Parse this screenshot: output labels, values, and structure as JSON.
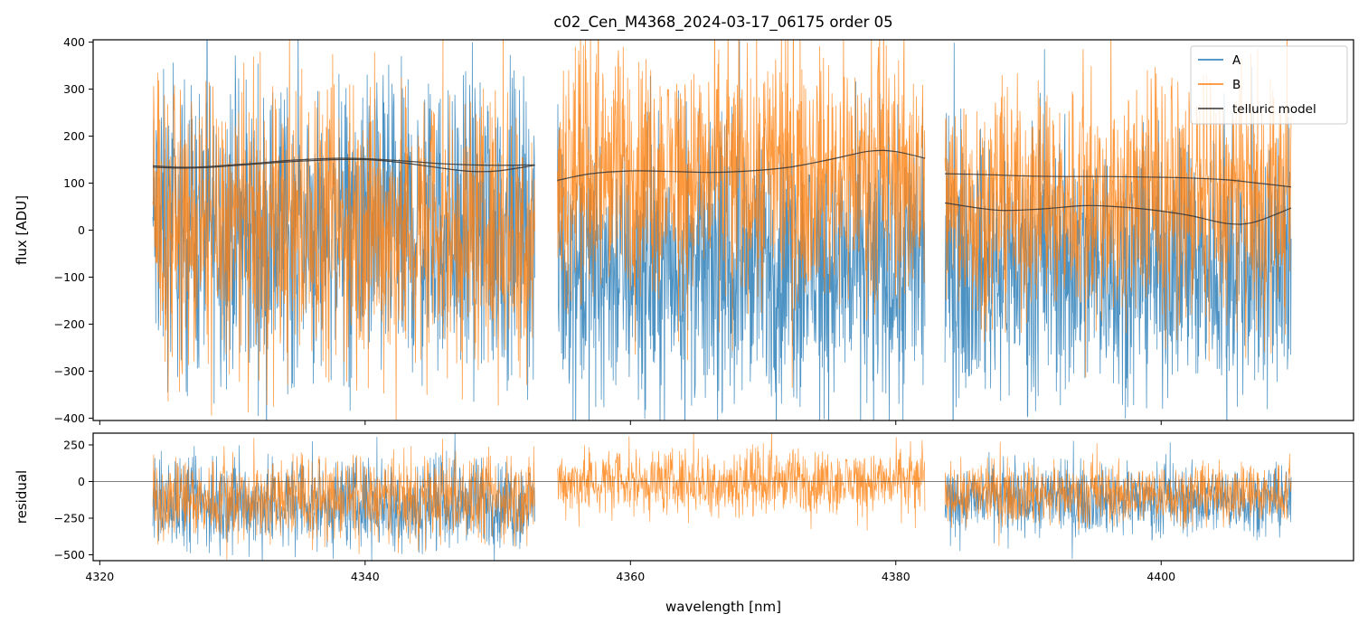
{
  "figure": {
    "title": "c02_Cen_M4368_2024-03-17_06175  order 05",
    "xlabel": "wavelength [nm]"
  },
  "colors": {
    "A": "#1f77b4",
    "B": "#ff7f0e",
    "telluric": "#333333",
    "zero_line": "#555555"
  },
  "legend": {
    "placement": "upper right",
    "entries": [
      {
        "key": "A",
        "label": "A"
      },
      {
        "key": "B",
        "label": "B"
      },
      {
        "key": "telluric",
        "label": "telluric model"
      }
    ]
  },
  "chart_data": [
    {
      "type": "line",
      "panel": "flux",
      "title": "c02_Cen_M4368_2024-03-17_06175  order 05",
      "xlabel": "",
      "ylabel": "flux [ADU]",
      "xlim": [
        4319.5,
        4414.5
      ],
      "ylim": [
        -405,
        405
      ],
      "xticks": [
        4320,
        4340,
        4360,
        4380,
        4400
      ],
      "yticks": [
        -400,
        -300,
        -200,
        -100,
        0,
        100,
        200,
        300,
        400
      ],
      "grid": false,
      "legend_loc": "upper right",
      "segments": [
        {
          "x_start": 4324.0,
          "x_end": 4352.8
        },
        {
          "x_start": 4354.5,
          "x_end": 4382.2
        },
        {
          "x_start": 4383.7,
          "x_end": 4409.8
        }
      ],
      "series": [
        {
          "name": "A",
          "style": "noisy-spectrum",
          "segment_levels": [
            0,
            -80,
            -70
          ],
          "noise_amplitude": [
            230,
            210,
            200
          ]
        },
        {
          "name": "B",
          "style": "noisy-spectrum",
          "segment_levels": [
            0,
            120,
            60
          ],
          "noise_amplitude": [
            210,
            190,
            180
          ]
        },
        {
          "name": "telluric model",
          "style": "smooth",
          "x": [
            4324,
            4326,
            4328,
            4330,
            4332,
            4334,
            4336,
            4338,
            4340,
            4342,
            4344,
            4346,
            4348,
            4350,
            4352.8
          ],
          "values": [
            137,
            134,
            135,
            139,
            143,
            148,
            151,
            153,
            152,
            149,
            145,
            141,
            139,
            138,
            139
          ]
        },
        {
          "name": "telluric model",
          "style": "smooth",
          "x": [
            4324,
            4326,
            4328,
            4330,
            4332,
            4334,
            4336,
            4338,
            4340,
            4342,
            4344,
            4346,
            4348,
            4350,
            4352.8
          ],
          "values": [
            134,
            132,
            133,
            137,
            141,
            145,
            148,
            150,
            150,
            146,
            139,
            131,
            125,
            126,
            138
          ]
        },
        {
          "name": "telluric model",
          "style": "smooth",
          "x": [
            4354.5,
            4357,
            4360,
            4363,
            4366,
            4369,
            4372,
            4375,
            4378,
            4380,
            4382.2
          ],
          "values": [
            106,
            120,
            126,
            125,
            123,
            126,
            134,
            150,
            168,
            167,
            153
          ]
        },
        {
          "name": "telluric model",
          "style": "smooth",
          "x": [
            4383.7,
            4387,
            4390,
            4393,
            4396,
            4399,
            4402,
            4405,
            4407,
            4409.8
          ],
          "values": [
            120,
            118,
            115,
            114,
            114,
            113,
            111,
            107,
            101,
            92
          ]
        },
        {
          "name": "telluric model",
          "style": "smooth",
          "x": [
            4383.7,
            4386,
            4388,
            4391,
            4394,
            4396,
            4399,
            4402,
            4405,
            4407,
            4409.8
          ],
          "values": [
            58,
            48,
            42,
            45,
            52,
            51,
            44,
            32,
            14,
            17,
            47
          ]
        }
      ]
    },
    {
      "type": "line",
      "panel": "residual",
      "xlabel": "wavelength [nm]",
      "ylabel": "residual",
      "xlim": [
        4319.5,
        4414.5
      ],
      "ylim": [
        -540,
        330
      ],
      "xticks": [
        4320,
        4340,
        4360,
        4380,
        4400
      ],
      "yticks": [
        -500,
        -250,
        0,
        250
      ],
      "grid": false,
      "zero_line": 0,
      "segments": [
        {
          "x_start": 4324.0,
          "x_end": 4352.8
        },
        {
          "x_start": 4354.5,
          "x_end": 4382.2
        },
        {
          "x_start": 4383.7,
          "x_end": 4409.8
        }
      ],
      "series": [
        {
          "name": "A",
          "style": "noisy-spectrum",
          "segment_levels": [
            -150,
            null,
            -120
          ],
          "noise_amplitude": [
            220,
            0,
            170
          ]
        },
        {
          "name": "B",
          "style": "noisy-spectrum",
          "segment_levels": [
            -120,
            0,
            -80
          ],
          "noise_amplitude": [
            200,
            160,
            150
          ]
        }
      ]
    }
  ]
}
